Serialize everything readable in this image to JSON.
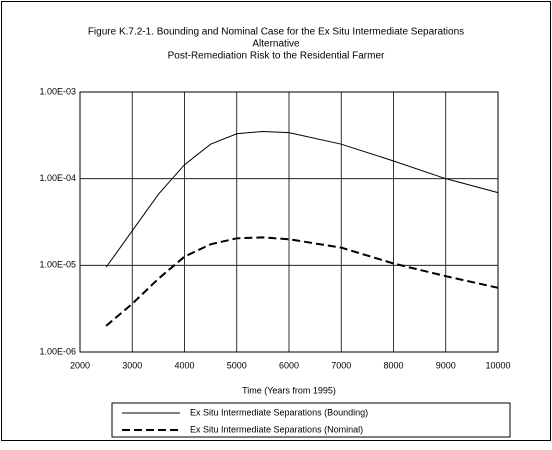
{
  "chart_data": {
    "type": "line",
    "title": [
      "Figure K.7.2-1. Bounding and Nominal Case for the Ex Situ Intermediate Separations",
      "Alternative",
      "Post-Remediation Risk to the Residential Farmer"
    ],
    "x_label": "Time (Years from 1995)",
    "x": [
      2500,
      3000,
      3500,
      4000,
      4500,
      5000,
      5500,
      6000,
      7000,
      8000,
      9000,
      10000
    ],
    "series": [
      {
        "name": "Ex Situ Intermediate Separations (Bounding)",
        "color": "#000000",
        "line_style": "solid",
        "values": [
          9.5e-06,
          2.5e-05,
          6.6e-05,
          0.000145,
          0.00025,
          0.00033,
          0.00035,
          0.00034,
          0.00025,
          0.00016,
          0.0001,
          6.9e-05
        ]
      },
      {
        "name": "Ex Situ Intermediate Separations (Nominal)",
        "color": "#000000",
        "line_style": "dashed",
        "values": [
          2e-06,
          3.6e-06,
          7e-06,
          1.26e-05,
          1.75e-05,
          2.05e-05,
          2.1e-05,
          2e-05,
          1.6e-05,
          1.05e-05,
          7.5e-06,
          5.5e-06
        ]
      }
    ],
    "xlim": [
      2000,
      10000
    ],
    "xticks": [
      2000,
      3000,
      4000,
      5000,
      6000,
      7000,
      8000,
      9000,
      10000
    ],
    "ylim": [
      1e-06,
      0.001
    ],
    "yticks": [
      {
        "value": 1e-06,
        "label": "1.00E-06"
      },
      {
        "value": 1e-05,
        "label": "1.00E-05"
      },
      {
        "value": 0.0001,
        "label": "1.00E-04"
      },
      {
        "value": 0.001,
        "label": "1.00E-03"
      }
    ],
    "y_scale": "log",
    "grid": true,
    "legend": "bottom"
  }
}
